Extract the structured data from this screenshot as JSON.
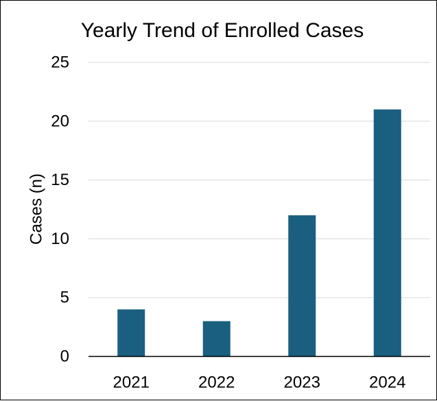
{
  "chart_data": {
    "type": "bar",
    "title": "Yearly Trend of Enrolled Cases",
    "xlabel": "",
    "ylabel": "Cases (n)",
    "categories": [
      "2021",
      "2022",
      "2023",
      "2024"
    ],
    "values": [
      4,
      3,
      12,
      21
    ],
    "ylim": [
      0,
      25
    ],
    "yticks": [
      "0",
      "5",
      "10",
      "15",
      "20",
      "25"
    ],
    "grid": true,
    "legend": "none",
    "colors": {
      "bar": "#1a5f80",
      "grid": "#d9d9d9",
      "axis": "#000000"
    }
  }
}
